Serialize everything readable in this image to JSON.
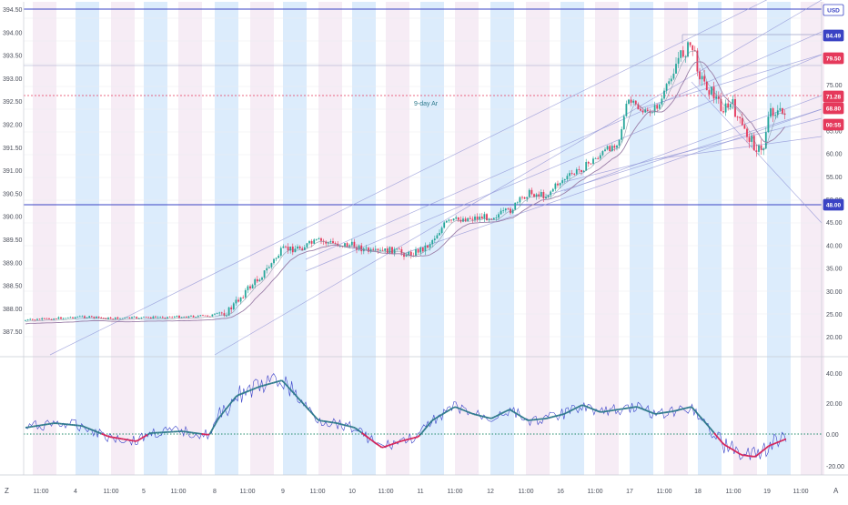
{
  "colors": {
    "background": "#ffffff",
    "band_blue": "#d6e9fb",
    "band_pink": "#f5e9f3",
    "grid": "#e9ecef",
    "axis_text": "#4a4e5a",
    "candle_up": "#26a69a",
    "candle_down": "#e5395b",
    "ma_line": "#9b7fa8",
    "trend_line": "#8f93d6",
    "hline": "#3a43c4",
    "dotted_price": "#e5395b",
    "osc_thin": "#3942c9",
    "osc_up": "#2f7a8c",
    "osc_down": "#d4245a",
    "zero_line": "#1f8a6a",
    "label_blue": "#3a43c4",
    "label_red": "#e5395b"
  },
  "price_axis": {
    "labels": [
      "394.50",
      "394.00",
      "393.50",
      "393.00",
      "392.50",
      "392.00",
      "391.50",
      "391.00",
      "390.50",
      "390.00",
      "389.50",
      "389.00",
      "388.50",
      "388.00",
      "387.50"
    ]
  },
  "right_axis": {
    "labels": [
      "75.00",
      "70.00",
      "65.00",
      "60.00",
      "55.00",
      "50.00",
      "45.00",
      "40.00",
      "35.00",
      "30.00",
      "25.00",
      "20.00"
    ]
  },
  "price_tags": [
    {
      "text": "USD",
      "style": "outline"
    },
    {
      "text": "84.49",
      "style": "blue"
    },
    {
      "text": "79.50",
      "style": "red"
    },
    {
      "text": "71.28",
      "style": "red"
    },
    {
      "text": "68.80",
      "style": "red"
    },
    {
      "text": "00:55",
      "style": "red"
    },
    {
      "text": "48.00",
      "style": "blue"
    }
  ],
  "annotation": "9-day Ar",
  "osc_axis": {
    "labels": [
      "40.00",
      "20.00",
      "0.00",
      "-20.00"
    ]
  },
  "time_axis": {
    "labels": [
      "11:00",
      "4",
      "11:00",
      "5",
      "11:00",
      "8",
      "11:00",
      "9",
      "11:00",
      "10",
      "11:00",
      "11",
      "11:00",
      "12",
      "11:00",
      "16",
      "11:00",
      "17",
      "11:00",
      "18",
      "11:00",
      "19",
      "11:00"
    ]
  },
  "corner_left": "Z",
  "corner_right": "A"
}
